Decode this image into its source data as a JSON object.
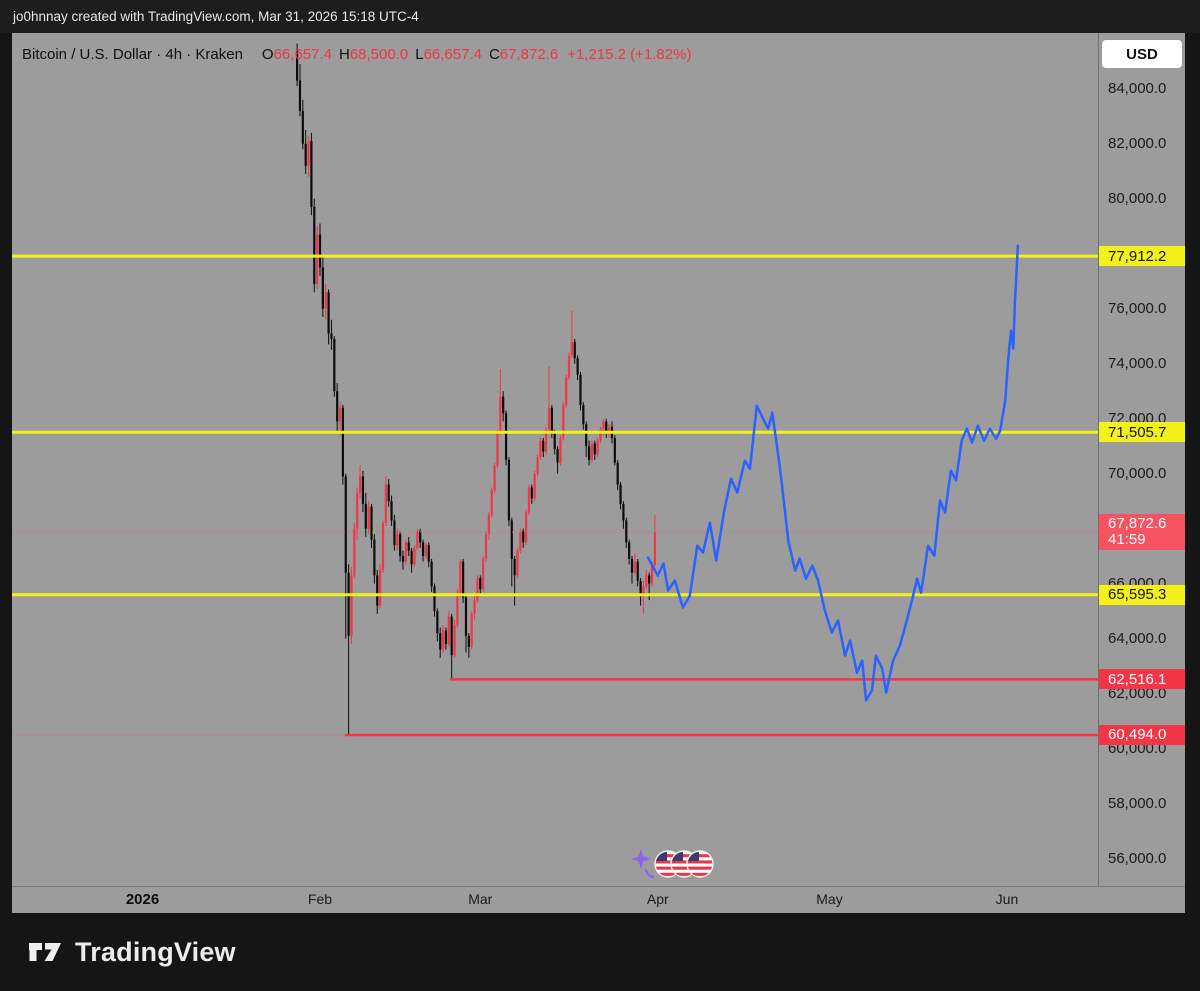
{
  "attribution_bar": {
    "text": "jo0hnnay created with TradingView.com, Mar 31, 2026 15:18 UTC-4"
  },
  "legend": {
    "symbol_title": "Bitcoin / U.S. Dollar · 4h · Kraken",
    "open_label": "O",
    "open": "66,657.4",
    "high_label": "H",
    "high": "68,500.0",
    "low_label": "L",
    "low": "66,657.4",
    "close_label": "C",
    "close": "67,872.6",
    "change": "+1,215.2 (+1.82%)"
  },
  "price_axis": {
    "currency_label": "USD",
    "ticks": [
      {
        "price": 84000,
        "label": "84,000.0"
      },
      {
        "price": 82000,
        "label": "82,000.0"
      },
      {
        "price": 80000,
        "label": "80,000.0"
      },
      {
        "price": 76000,
        "label": "76,000.0"
      },
      {
        "price": 74000,
        "label": "74,000.0"
      },
      {
        "price": 72000,
        "label": "72,000.0"
      },
      {
        "price": 70000,
        "label": "70,000.0"
      },
      {
        "price": 66000,
        "label": "66,000.0"
      },
      {
        "price": 64000,
        "label": "64,000.0"
      },
      {
        "price": 62000,
        "label": "62,000.0"
      },
      {
        "price": 60000,
        "label": "60,000.0"
      },
      {
        "price": 58000,
        "label": "58,000.0"
      },
      {
        "price": 56000,
        "label": "56,000.0"
      }
    ]
  },
  "levels": [
    {
      "price": 77912.2,
      "label": "77,912.2",
      "kind": "yellow",
      "from_day": null
    },
    {
      "price": 71505.7,
      "label": "71,505.7",
      "kind": "yellow",
      "from_day": null
    },
    {
      "price": 65595.3,
      "label": "65,595.3",
      "kind": "yellow",
      "from_day": null
    },
    {
      "price": 62516.1,
      "label": "62,516.1",
      "kind": "red",
      "from_day": 26.7
    },
    {
      "price": 60494.0,
      "label": "60,494.0",
      "kind": "red",
      "from_day": 8.4,
      "dotted_full": true
    }
  ],
  "last_price": {
    "price": 67872.6,
    "label": "67,872.6",
    "countdown": "41:59"
  },
  "time_axis": {
    "ticks": [
      {
        "label": "2026",
        "day": -27,
        "bold": true
      },
      {
        "label": "Feb",
        "day": 4
      },
      {
        "label": "Mar",
        "day": 32
      },
      {
        "label": "Apr",
        "day": 63
      },
      {
        "label": "May",
        "day": 93
      },
      {
        "label": "Jun",
        "day": 124
      }
    ]
  },
  "footer": {
    "brand": "TradingView"
  },
  "watermark": {
    "icons": [
      "dizzy-sparkle-icon",
      "us-flag-icon",
      "us-flag-icon",
      "us-flag-icon"
    ]
  },
  "colors": {
    "up": "#F23645",
    "down": "#0c0c0c",
    "blue_line": "#2962FF",
    "yellow": "#F4F11A",
    "red": "#F23645",
    "last_price": "#F7525F",
    "pane_bg": "#9c9c9c",
    "axis_text": "#1b1b1b"
  },
  "chart_data": {
    "type": "candlestick",
    "title": "Bitcoin / U.S. Dollar · 4h · Kraken",
    "symbol": "Bitcoin / U.S. Dollar",
    "interval": "4h",
    "exchange": "Kraken",
    "ohlc_last": {
      "open": 66657.4,
      "high": 68500.0,
      "low": 66657.4,
      "close": 67872.6,
      "change": 1215.2,
      "change_pct": 1.82
    },
    "day0_date": "2026-01-28",
    "x_domain_days": [
      -49.8,
      139.9
    ],
    "y_domain_price": [
      55000,
      86030
    ],
    "grid": false,
    "candles": [
      [
        0,
        85400,
        85650,
        84100,
        84300
      ],
      [
        0.5,
        84300,
        84900,
        83000,
        83200
      ],
      [
        1,
        83200,
        83600,
        81800,
        82000
      ],
      [
        1.5,
        82000,
        82500,
        80900,
        81200
      ],
      [
        2,
        81200,
        82300,
        80800,
        82100
      ],
      [
        2.5,
        82100,
        82400,
        79400,
        79700
      ],
      [
        3,
        79700,
        80000,
        76600,
        76900
      ],
      [
        3.5,
        76900,
        79000,
        76700,
        78700
      ],
      [
        4,
        78700,
        79100,
        77200,
        77500
      ],
      [
        4.5,
        77500,
        77900,
        75700,
        76000
      ],
      [
        5,
        76000,
        76900,
        75600,
        76600
      ],
      [
        5.5,
        76600,
        76700,
        74700,
        75100
      ],
      [
        6,
        75100,
        75600,
        74500,
        74900
      ],
      [
        6.5,
        74900,
        75000,
        72800,
        73000
      ],
      [
        7,
        73000,
        73300,
        71500,
        71900
      ],
      [
        7.5,
        71900,
        72600,
        71400,
        72400
      ],
      [
        8,
        72400,
        72500,
        69600,
        69900
      ],
      [
        8.5,
        69900,
        70000,
        64000,
        66400
      ],
      [
        9,
        66400,
        66700,
        60494,
        64100
      ],
      [
        9.5,
        64100,
        66600,
        63800,
        66300
      ],
      [
        10,
        66300,
        68200,
        66200,
        68000
      ],
      [
        10.5,
        68000,
        69500,
        67600,
        69300
      ],
      [
        11,
        69300,
        70300,
        69100,
        69900
      ],
      [
        11.5,
        69900,
        70100,
        68600,
        68900
      ],
      [
        12,
        68900,
        69300,
        67700,
        68000
      ],
      [
        12.5,
        68000,
        69000,
        67800,
        68800
      ],
      [
        13,
        68800,
        68900,
        67300,
        67600
      ],
      [
        13.5,
        67600,
        67800,
        66000,
        66300
      ],
      [
        14,
        66300,
        66500,
        64900,
        65200
      ],
      [
        14.5,
        65200,
        66700,
        65100,
        66500
      ],
      [
        15,
        66500,
        68300,
        66400,
        68200
      ],
      [
        15.5,
        68200,
        69900,
        68100,
        69600
      ],
      [
        16,
        69600,
        69800,
        68800,
        69000
      ],
      [
        16.5,
        69000,
        69200,
        68100,
        68300
      ],
      [
        17,
        68300,
        68500,
        67200,
        67400
      ],
      [
        17.5,
        67400,
        68000,
        67200,
        67800
      ],
      [
        18,
        67800,
        67900,
        66800,
        67000
      ],
      [
        18.5,
        67000,
        67200,
        66500,
        66800
      ],
      [
        19,
        66800,
        67600,
        66700,
        67500
      ],
      [
        19.5,
        67500,
        67700,
        67000,
        67200
      ],
      [
        20,
        67200,
        67300,
        66400,
        66700
      ],
      [
        20.5,
        66700,
        67400,
        66600,
        67300
      ],
      [
        21,
        67300,
        68000,
        67200,
        67900
      ],
      [
        21.5,
        67900,
        68000,
        67300,
        67500
      ],
      [
        22,
        67500,
        67600,
        66800,
        67000
      ],
      [
        22.5,
        67000,
        67500,
        66900,
        67400
      ],
      [
        23,
        67400,
        67500,
        66600,
        66800
      ],
      [
        23.5,
        66800,
        66900,
        65700,
        65900
      ],
      [
        24,
        65900,
        66000,
        64800,
        65000
      ],
      [
        24.5,
        65000,
        65100,
        63900,
        64200
      ],
      [
        25,
        64200,
        64400,
        63300,
        63600
      ],
      [
        25.5,
        63600,
        64500,
        63500,
        64300
      ],
      [
        26,
        64300,
        64400,
        63600,
        63800
      ],
      [
        26.5,
        63800,
        65000,
        63700,
        64800
      ],
      [
        27,
        64800,
        64900,
        62516,
        63400
      ],
      [
        27.5,
        63400,
        64700,
        63300,
        64500
      ],
      [
        28,
        64500,
        65800,
        64400,
        65600
      ],
      [
        28.5,
        65600,
        66900,
        65500,
        66800
      ],
      [
        29,
        66800,
        66900,
        65300,
        65500
      ],
      [
        29.5,
        65500,
        65600,
        63500,
        64100
      ],
      [
        30,
        64100,
        64200,
        63300,
        63700
      ],
      [
        30.5,
        63700,
        65000,
        63600,
        64900
      ],
      [
        31,
        64900,
        65600,
        64700,
        65400
      ],
      [
        31.5,
        65400,
        66300,
        65300,
        66200
      ],
      [
        32,
        66200,
        66300,
        65600,
        65800
      ],
      [
        32.5,
        65800,
        67000,
        65700,
        66900
      ],
      [
        33,
        66900,
        67900,
        66800,
        67800
      ],
      [
        33.5,
        67800,
        68600,
        67600,
        68500
      ],
      [
        34,
        68500,
        69500,
        68400,
        69400
      ],
      [
        34.5,
        69400,
        70400,
        69300,
        70300
      ],
      [
        35,
        70300,
        71600,
        70200,
        71500
      ],
      [
        35.5,
        71500,
        73800,
        71400,
        72800
      ],
      [
        36,
        72800,
        73000,
        71900,
        72200
      ],
      [
        36.5,
        72200,
        72300,
        70300,
        70500
      ],
      [
        37,
        70500,
        70600,
        68100,
        68300
      ],
      [
        37.5,
        68300,
        68400,
        65900,
        66900
      ],
      [
        38,
        66900,
        67000,
        65200,
        66300
      ],
      [
        38.5,
        66300,
        67300,
        66200,
        67200
      ],
      [
        39,
        67200,
        68000,
        67100,
        67900
      ],
      [
        39.5,
        67900,
        68000,
        67300,
        67500
      ],
      [
        40,
        67500,
        68700,
        67400,
        68600
      ],
      [
        40.5,
        68600,
        69600,
        68500,
        69500
      ],
      [
        41,
        69500,
        69600,
        68900,
        69100
      ],
      [
        41.5,
        69100,
        70100,
        69000,
        70000
      ],
      [
        42,
        70000,
        70700,
        69900,
        70600
      ],
      [
        42.5,
        70600,
        71300,
        70500,
        71200
      ],
      [
        43,
        71200,
        71300,
        70600,
        70800
      ],
      [
        43.5,
        70800,
        71700,
        70700,
        71600
      ],
      [
        44,
        71600,
        73900,
        71500,
        72400
      ],
      [
        44.5,
        72400,
        72500,
        71300,
        71500
      ],
      [
        45,
        71500,
        71600,
        70700,
        70900
      ],
      [
        45.5,
        70900,
        71000,
        70000,
        70400
      ],
      [
        46,
        70400,
        71400,
        70300,
        71300
      ],
      [
        46.5,
        71300,
        72600,
        71200,
        72500
      ],
      [
        47,
        72500,
        73600,
        72400,
        73500
      ],
      [
        47.5,
        73500,
        74400,
        73400,
        74300
      ],
      [
        48,
        74300,
        75925,
        74200,
        74800
      ],
      [
        48.5,
        74800,
        74900,
        74000,
        74200
      ],
      [
        49,
        74200,
        74300,
        73400,
        73600
      ],
      [
        49.5,
        73600,
        73700,
        72300,
        72500
      ],
      [
        50,
        72500,
        72600,
        71600,
        71800
      ],
      [
        50.5,
        71800,
        71900,
        70600,
        71000
      ],
      [
        51,
        71000,
        71200,
        70300,
        70500
      ],
      [
        51.5,
        70500,
        71200,
        70400,
        71100
      ],
      [
        52,
        71100,
        71200,
        70500,
        70700
      ],
      [
        52.5,
        70700,
        71300,
        70600,
        71200
      ],
      [
        53,
        71200,
        71700,
        71100,
        71600
      ],
      [
        53.5,
        71600,
        72000,
        71400,
        71900
      ],
      [
        54,
        71900,
        72000,
        71300,
        71500
      ],
      [
        54.5,
        71500,
        71800,
        71300,
        71700
      ],
      [
        55,
        71700,
        71900,
        71100,
        71300
      ],
      [
        55.5,
        71300,
        71400,
        70300,
        70400
      ],
      [
        56,
        70400,
        70500,
        69400,
        69600
      ],
      [
        56.5,
        69600,
        69700,
        68700,
        68900
      ],
      [
        57,
        68900,
        69000,
        68000,
        68300
      ],
      [
        57.5,
        68300,
        68400,
        67300,
        67500
      ],
      [
        58,
        67500,
        67600,
        66700,
        66900
      ],
      [
        58.5,
        66900,
        67000,
        66000,
        66400
      ],
      [
        59,
        66400,
        67100,
        66300,
        66800
      ],
      [
        59.5,
        66800,
        66900,
        65900,
        66100
      ],
      [
        60,
        66100,
        66200,
        65200,
        65600
      ],
      [
        60.5,
        65600,
        66100,
        64900,
        65900
      ],
      [
        61,
        65900,
        66500,
        65800,
        66300
      ],
      [
        61.5,
        66300,
        66400,
        65400,
        66000
      ],
      [
        62,
        66000,
        66800,
        65900,
        66700
      ],
      [
        62.5,
        66657.4,
        68500,
        66657.4,
        67872.6
      ]
    ],
    "projection_line": {
      "name": "projected-price-path",
      "color": "#2962FF",
      "points": [
        [
          61.3,
          66950
        ],
        [
          63,
          66290
        ],
        [
          64,
          66730
        ],
        [
          64.8,
          65750
        ],
        [
          66,
          66110
        ],
        [
          67.4,
          65130
        ],
        [
          68.6,
          65560
        ],
        [
          69.9,
          67380
        ],
        [
          70.9,
          67130
        ],
        [
          72.1,
          68220
        ],
        [
          73.2,
          66840
        ],
        [
          74.6,
          68650
        ],
        [
          75.8,
          69820
        ],
        [
          76.9,
          69310
        ],
        [
          78.2,
          70470
        ],
        [
          79.1,
          70180
        ],
        [
          80.3,
          72470
        ],
        [
          81.4,
          72000
        ],
        [
          82.3,
          71640
        ],
        [
          83,
          72220
        ],
        [
          84.4,
          70110
        ],
        [
          85.8,
          67560
        ],
        [
          87,
          66470
        ],
        [
          87.8,
          66910
        ],
        [
          88.9,
          66180
        ],
        [
          90,
          66660
        ],
        [
          91,
          66110
        ],
        [
          92.2,
          65020
        ],
        [
          93.4,
          64220
        ],
        [
          94.5,
          64660
        ],
        [
          95.7,
          63380
        ],
        [
          96.6,
          63930
        ],
        [
          97.8,
          62760
        ],
        [
          98.7,
          63200
        ],
        [
          99.4,
          61750
        ],
        [
          100.4,
          62110
        ],
        [
          101.1,
          63380
        ],
        [
          102.2,
          62910
        ],
        [
          102.9,
          62040
        ],
        [
          104.1,
          63200
        ],
        [
          105.3,
          63750
        ],
        [
          106.4,
          64580
        ],
        [
          107.4,
          65380
        ],
        [
          108.3,
          66180
        ],
        [
          109,
          65670
        ],
        [
          110.2,
          67380
        ],
        [
          111.3,
          67020
        ],
        [
          112.3,
          69020
        ],
        [
          113.2,
          68580
        ],
        [
          114.2,
          70110
        ],
        [
          115.1,
          69750
        ],
        [
          116.1,
          71200
        ],
        [
          117,
          71640
        ],
        [
          117.9,
          71130
        ],
        [
          118.9,
          71750
        ],
        [
          120,
          71200
        ],
        [
          121,
          71640
        ],
        [
          122.1,
          71270
        ],
        [
          122.8,
          71560
        ],
        [
          123.7,
          72660
        ],
        [
          124.2,
          74110
        ],
        [
          124.7,
          75200
        ],
        [
          125.1,
          74550
        ],
        [
          125.4,
          76290
        ],
        [
          125.9,
          78290
        ]
      ]
    }
  }
}
